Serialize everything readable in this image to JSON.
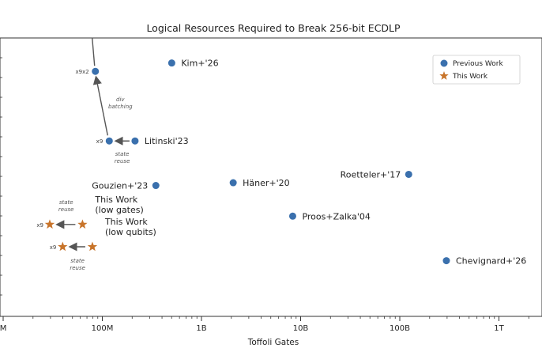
{
  "chart_data": {
    "type": "scatter",
    "title": "Logical Resources Required to Break 256-bit ECDLP",
    "xlabel": "Toffoli Gates",
    "ylabel": "",
    "xscale": "log",
    "xlim_log10": [
      7,
      12.4
    ],
    "x_ticks": [
      {
        "label": "M",
        "log10": 7
      },
      {
        "label": "100M",
        "log10": 8
      },
      {
        "label": "1B",
        "log10": 9
      },
      {
        "label": "10B",
        "log10": 10
      },
      {
        "label": "100B",
        "log10": 11
      },
      {
        "label": "1T",
        "log10": 12
      }
    ],
    "legend": {
      "location": "top-right",
      "entries": [
        {
          "label": "Previous Work",
          "marker": "circle",
          "color": "#3a70ad"
        },
        {
          "label": "This Work",
          "marker": "star",
          "color": "#c8742a"
        }
      ]
    },
    "series": [
      {
        "name": "Previous Work",
        "marker": "circle",
        "color": "#3a70ad",
        "points": [
          {
            "label": "Kim+'26",
            "log10_toffoli": 8.7,
            "rel_qubits": 0.91,
            "label_side": "right"
          },
          {
            "label": "Litinski'23",
            "log10_toffoli": 8.33,
            "rel_qubits": 0.63,
            "label_side": "right"
          },
          {
            "label": "Gouzien+'23",
            "log10_toffoli": 8.54,
            "rel_qubits": 0.47,
            "label_side": "left"
          },
          {
            "label": "Häner+'20",
            "log10_toffoli": 9.32,
            "rel_qubits": 0.48,
            "label_side": "right"
          },
          {
            "label": "Roetteler+'17",
            "log10_toffoli": 11.09,
            "rel_qubits": 0.51,
            "label_side": "left"
          },
          {
            "label": "Proos+Zalka'04",
            "log10_toffoli": 9.92,
            "rel_qubits": 0.36,
            "label_side": "right"
          },
          {
            "label": "Chevignard+'26",
            "log10_toffoli": 11.47,
            "rel_qubits": 0.2,
            "label_side": "right"
          }
        ]
      },
      {
        "name": "This Work",
        "marker": "star",
        "color": "#c8742a",
        "points": [
          {
            "label": "This Work (low gates)",
            "label_lines": [
              "This Work",
              "(low gates)"
            ],
            "log10_toffoli": 7.8,
            "rel_qubits": 0.33
          },
          {
            "label": "This Work (low qubits)",
            "label_lines": [
              "This Work",
              "(low qubits)"
            ],
            "log10_toffoli": 7.9,
            "rel_qubits": 0.25
          }
        ]
      }
    ],
    "variants": [
      {
        "multiplier": "x9x2",
        "log10_toffoli": 7.93,
        "rel_qubits": 0.88,
        "marker": "circle"
      },
      {
        "multiplier": "x9",
        "log10_toffoli": 8.07,
        "rel_qubits": 0.63,
        "marker": "circle"
      },
      {
        "multiplier": "x9",
        "log10_toffoli": 7.47,
        "rel_qubits": 0.33,
        "marker": "star"
      },
      {
        "multiplier": "x9",
        "log10_toffoli": 7.6,
        "rel_qubits": 0.25,
        "marker": "star"
      }
    ],
    "annotations": [
      {
        "text": "div",
        "kind": "arrow-note"
      },
      {
        "text": "batching",
        "kind": "arrow-note"
      },
      {
        "text": "state",
        "kind": "arrow-note"
      },
      {
        "text": "reuse",
        "kind": "arrow-note"
      }
    ]
  }
}
